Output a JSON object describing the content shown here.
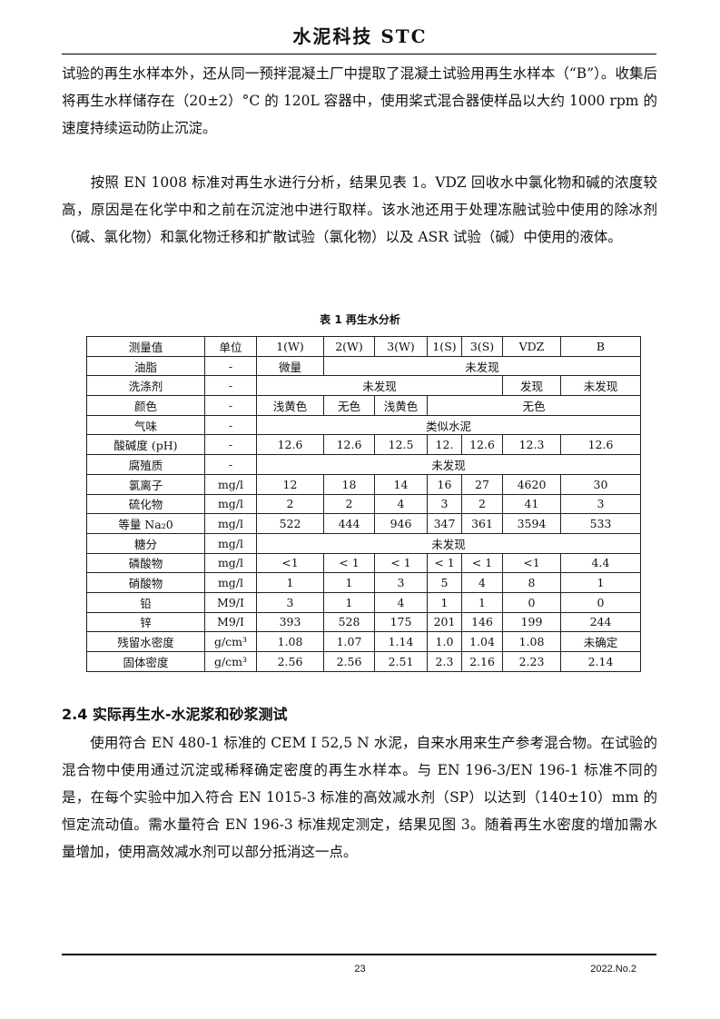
{
  "header": {
    "title": "水泥科技 STC"
  },
  "paragraphs": [
    "试验的再生水样本外，还从同一预拌混凝土厂中提取了混凝土试验用再生水样本（“B”）。收集后将再生水样储存在（20±2）°C 的 120L 容器中，使用桨式混合器使样品以大约 1000 rpm 的速度持续运动防止沉淀。",
    "　　按照 EN 1008 标准对再生水进行分析，结果见表 1。VDZ 回收水中氯化物和碱的浓度较高，原因是在化学中和之前在沉淀池中进行取样。该水池还用于处理冻融试验中使用的除冰剂（碱、氯化物）和氯化物迁移和扩散试验（氯化物）以及 ASR 试验（碱）中使用的液体。"
  ],
  "table": {
    "caption": "表 1  再生水分析",
    "header": [
      "测量值",
      "单位",
      "1(W)",
      "2(W)",
      "3(W)",
      "1(S)",
      "3(S)",
      "VDZ",
      "B"
    ],
    "rows": [
      [
        {
          "t": "油脂"
        },
        {
          "t": "-"
        },
        {
          "t": "微量"
        },
        {
          "t": "未发现",
          "span": 6
        }
      ],
      [
        {
          "t": "洗涤剂"
        },
        {
          "t": "-"
        },
        {
          "t": "未发现",
          "span": 5
        },
        {
          "t": "发现"
        },
        {
          "t": "未发现"
        }
      ],
      [
        {
          "t": "颜色"
        },
        {
          "t": "-"
        },
        {
          "t": "浅黄色"
        },
        {
          "t": "无色"
        },
        {
          "t": "浅黄色"
        },
        {
          "t": "无色",
          "span": 4
        }
      ],
      [
        {
          "t": "气味"
        },
        {
          "t": "-"
        },
        {
          "t": "类似水泥",
          "span": 7
        }
      ],
      [
        {
          "t": "酸碱度 (pH)"
        },
        {
          "t": "-"
        },
        {
          "t": "12.6"
        },
        {
          "t": "12.6"
        },
        {
          "t": "12.5"
        },
        {
          "t": "12."
        },
        {
          "t": "12.6"
        },
        {
          "t": "12.3"
        },
        {
          "t": "12.6"
        }
      ],
      [
        {
          "t": "腐殖质"
        },
        {
          "t": "-"
        },
        {
          "t": "未发现",
          "span": 7
        }
      ],
      [
        {
          "t": "氯离子"
        },
        {
          "t": "mg/l"
        },
        {
          "t": "12"
        },
        {
          "t": "18"
        },
        {
          "t": "14"
        },
        {
          "t": "16"
        },
        {
          "t": "27"
        },
        {
          "t": "4620"
        },
        {
          "t": "30"
        }
      ],
      [
        {
          "t": "硫化物"
        },
        {
          "t": "mg/l"
        },
        {
          "t": "2"
        },
        {
          "t": "2"
        },
        {
          "t": "4"
        },
        {
          "t": "3"
        },
        {
          "t": "2"
        },
        {
          "t": "41"
        },
        {
          "t": "3"
        }
      ],
      [
        {
          "t": "等量 Na₂0"
        },
        {
          "t": "mg/l"
        },
        {
          "t": "522"
        },
        {
          "t": "444"
        },
        {
          "t": "946"
        },
        {
          "t": "347"
        },
        {
          "t": "361"
        },
        {
          "t": "3594"
        },
        {
          "t": "533"
        }
      ],
      [
        {
          "t": "糖分"
        },
        {
          "t": "mg/l"
        },
        {
          "t": "未发现",
          "span": 7
        }
      ],
      [
        {
          "t": "磷酸物"
        },
        {
          "t": "mg/l"
        },
        {
          "t": "<1"
        },
        {
          "t": "< 1"
        },
        {
          "t": "< 1"
        },
        {
          "t": "< 1"
        },
        {
          "t": "< 1"
        },
        {
          "t": "<1"
        },
        {
          "t": "4.4"
        }
      ],
      [
        {
          "t": "硝酸物"
        },
        {
          "t": "mg/l"
        },
        {
          "t": "1"
        },
        {
          "t": "1"
        },
        {
          "t": "3"
        },
        {
          "t": "5"
        },
        {
          "t": "4"
        },
        {
          "t": "8"
        },
        {
          "t": "1"
        }
      ],
      [
        {
          "t": "铅"
        },
        {
          "t": "M9/I"
        },
        {
          "t": "3"
        },
        {
          "t": "1"
        },
        {
          "t": "4"
        },
        {
          "t": "1"
        },
        {
          "t": "1"
        },
        {
          "t": "0"
        },
        {
          "t": "0"
        }
      ],
      [
        {
          "t": "锌"
        },
        {
          "t": "M9/I"
        },
        {
          "t": "393"
        },
        {
          "t": "528"
        },
        {
          "t": "175"
        },
        {
          "t": "201"
        },
        {
          "t": "146"
        },
        {
          "t": "199"
        },
        {
          "t": "244"
        }
      ],
      [
        {
          "t": "残留水密度"
        },
        {
          "t": "g/cm³"
        },
        {
          "t": "1.08"
        },
        {
          "t": "1.07"
        },
        {
          "t": "1.14"
        },
        {
          "t": "1.0"
        },
        {
          "t": "1.04"
        },
        {
          "t": "1.08"
        },
        {
          "t": "未确定"
        }
      ],
      [
        {
          "t": "固体密度"
        },
        {
          "t": "g/cm³"
        },
        {
          "t": "2.56"
        },
        {
          "t": "2.56"
        },
        {
          "t": "2.51"
        },
        {
          "t": "2.3"
        },
        {
          "t": "2.16"
        },
        {
          "t": "2.23"
        },
        {
          "t": "2.14"
        }
      ]
    ]
  },
  "section": {
    "title": "2.4 实际再生水-水泥浆和砂浆测试"
  },
  "section_paragraph": "　　使用符合 EN 480-1 标准的 CEM I 52,5 N 水泥，自来水用来生产参考混合物。在试验的混合物中使用通过沉淀或稀释确定密度的再生水样本。与 EN 196-3/EN 196-1 标准不同的是，在每个实验中加入符合 EN 1015-3 标准的高效减水剂（SP）以达到（140±10）mm 的恒定流动值。需水量符合 EN 196-3 标准规定测定，结果见图 3。随着再生水密度的增加需水量增加，使用高效减水剂可以部分抵消这一点。",
  "footer": {
    "page": "23",
    "issue": "2022.No.2"
  }
}
